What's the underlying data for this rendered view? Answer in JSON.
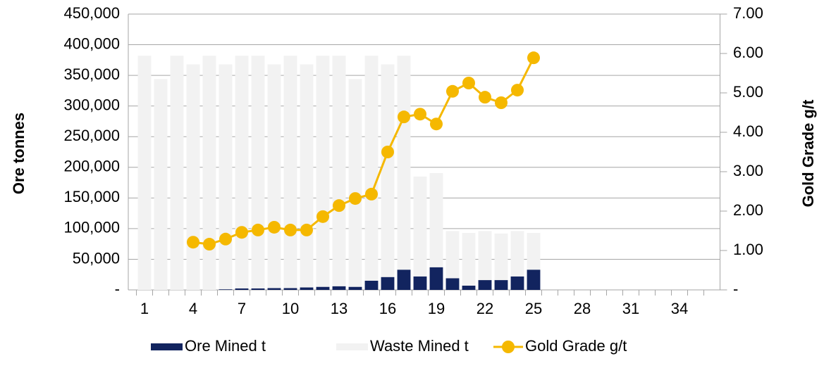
{
  "chart_data": {
    "type": "bar",
    "categories": [
      1,
      null,
      null,
      4,
      null,
      null,
      7,
      null,
      null,
      10,
      null,
      null,
      13,
      null,
      null,
      16,
      null,
      null,
      19,
      null,
      null,
      22,
      null,
      null,
      25,
      null,
      null,
      28,
      null,
      null,
      31,
      null,
      null,
      34,
      null,
      null
    ],
    "series": [
      {
        "name": "Ore Mined t",
        "type": "bar",
        "color": "#12245f",
        "values": [
          0,
          0,
          0,
          0,
          0,
          1000,
          2500,
          2500,
          3000,
          3000,
          4000,
          5000,
          6000,
          5000,
          15000,
          21000,
          33000,
          22000,
          37000,
          19000,
          7000,
          16000,
          16000,
          22000,
          33000,
          null,
          null,
          null,
          null,
          null,
          null,
          null,
          null,
          null,
          null,
          null
        ]
      },
      {
        "name": "Waste Mined t",
        "type": "bar",
        "color": "#f2f2f2",
        "values": [
          382000,
          344000,
          382000,
          368000,
          382000,
          367000,
          379500,
          379500,
          365000,
          379000,
          364000,
          377000,
          376000,
          339000,
          367000,
          347000,
          349000,
          163000,
          153500,
          77000,
          86000,
          80000,
          76000,
          74000,
          60000,
          null,
          null,
          null,
          null,
          null,
          null,
          null,
          null,
          null,
          null,
          null
        ]
      },
      {
        "name": "Gold Grade g/t",
        "type": "line",
        "axis": "y2",
        "color": "#f5b800",
        "values": [
          null,
          null,
          null,
          1.21,
          1.16,
          1.29,
          1.46,
          1.52,
          1.59,
          1.52,
          1.52,
          1.86,
          2.14,
          2.32,
          2.43,
          3.5,
          4.39,
          4.46,
          4.21,
          5.04,
          5.25,
          4.89,
          4.75,
          5.07,
          5.89,
          null,
          null,
          null,
          null,
          null,
          null,
          null,
          null,
          null,
          null,
          null
        ]
      }
    ],
    "stacked": true,
    "y_label": "Ore tonnes",
    "y2_label": "Gold Grade g/t",
    "ylim": [
      0,
      450000
    ],
    "yticks": [
      {
        "value": 0,
        "label": "-"
      },
      {
        "value": 50000,
        "label": "50,000"
      },
      {
        "value": 100000,
        "label": "100,000"
      },
      {
        "value": 150000,
        "label": "150,000"
      },
      {
        "value": 200000,
        "label": "200,000"
      },
      {
        "value": 250000,
        "label": "250,000"
      },
      {
        "value": 300000,
        "label": "300,000"
      },
      {
        "value": 350000,
        "label": "350,000"
      },
      {
        "value": 400000,
        "label": "400,000"
      },
      {
        "value": 450000,
        "label": "450,000"
      }
    ],
    "y2lim": [
      0,
      7
    ],
    "y2ticks": [
      {
        "value": 0,
        "label": "-"
      },
      {
        "value": 1,
        "label": "1.00"
      },
      {
        "value": 2,
        "label": "2.00"
      },
      {
        "value": 3,
        "label": "3.00"
      },
      {
        "value": 4,
        "label": "4.00"
      },
      {
        "value": 5,
        "label": "5.00"
      },
      {
        "value": 6,
        "label": "6.00"
      },
      {
        "value": 7,
        "label": "7.00"
      }
    ],
    "grid": true,
    "legend": "bottom"
  }
}
